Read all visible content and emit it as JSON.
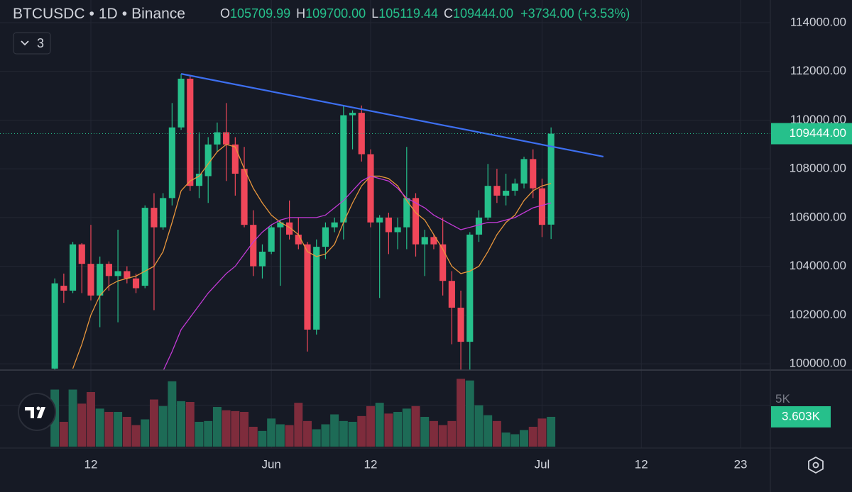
{
  "chart_data": {
    "type": "candlestick",
    "header": {
      "symbol": "BTCUSDC",
      "separator": "•",
      "interval": "1D",
      "exchange": "Binance",
      "ohlc": [
        {
          "label": "O",
          "value": "105709.99"
        },
        {
          "label": "H",
          "value": "109700.00"
        },
        {
          "label": "L",
          "value": "105119.44"
        },
        {
          "label": "C",
          "value": "109444.00"
        }
      ],
      "change": "+3734.00 (+3.53%)"
    },
    "indicators_count": "3",
    "x": [
      0,
      1,
      2,
      3,
      4,
      5,
      6,
      7,
      8,
      9,
      10,
      11,
      12,
      13,
      14,
      15,
      16,
      17,
      18,
      19,
      20,
      21,
      22,
      23,
      24,
      25,
      26,
      27,
      28,
      29,
      30,
      31,
      32,
      33,
      34,
      35,
      36,
      37,
      38,
      39,
      40,
      41,
      42,
      43,
      44,
      45,
      46,
      47,
      48,
      49,
      50,
      51,
      52,
      53,
      54,
      55
    ],
    "open": [
      99800,
      103200,
      103000,
      104900,
      104100,
      102800,
      104100,
      103600,
      103800,
      103500,
      103200,
      106400,
      105600,
      106800,
      109700,
      111700,
      107300,
      107700,
      109000,
      109500,
      109000,
      108000,
      105700,
      104000,
      104600,
      105600,
      105800,
      105300,
      104900,
      101400,
      104800,
      105600,
      105800,
      110200,
      110300,
      108600,
      105800,
      106000,
      105400,
      105600,
      106800,
      104900,
      105200,
      104900,
      103400,
      102300,
      100900,
      105300,
      106000,
      107300,
      106900,
      107100,
      107400,
      108400,
      107200,
      105709.99
    ],
    "high": [
      103500,
      103700,
      105000,
      104950,
      105700,
      104400,
      104200,
      105500,
      104000,
      103700,
      106500,
      107000,
      107000,
      110700,
      111900,
      111800,
      109500,
      109300,
      109900,
      110700,
      109300,
      108900,
      106300,
      104900,
      105700,
      105900,
      106700,
      106000,
      105000,
      105100,
      105800,
      106000,
      110600,
      110400,
      110600,
      108800,
      106100,
      106200,
      106000,
      108900,
      107000,
      105500,
      105300,
      106000,
      103800,
      103000,
      105400,
      106300,
      108200,
      108000,
      107800,
      107600,
      108500,
      108800,
      107600,
      109700
    ],
    "low": [
      99750,
      102500,
      102900,
      102900,
      102600,
      101500,
      103000,
      101700,
      103300,
      102900,
      103100,
      102200,
      105500,
      106500,
      109600,
      107100,
      106800,
      106600,
      108700,
      107500,
      106900,
      105600,
      103600,
      103500,
      104500,
      103200,
      105100,
      104700,
      100500,
      101200,
      104300,
      105400,
      105100,
      108800,
      108300,
      105600,
      102700,
      104500,
      104700,
      104700,
      104400,
      103600,
      104700,
      102800,
      100800,
      99750,
      99750,
      105000,
      105900,
      106600,
      106500,
      106900,
      107200,
      106800,
      105200,
      105119.44
    ],
    "close": [
      103300,
      103000,
      104900,
      104100,
      102800,
      104100,
      103600,
      103800,
      103500,
      103100,
      106400,
      105600,
      106800,
      109700,
      111700,
      107300,
      107800,
      109000,
      109500,
      109000,
      107800,
      105700,
      104000,
      104600,
      105600,
      105800,
      105300,
      104900,
      101400,
      104800,
      105600,
      105800,
      110200,
      110300,
      108600,
      105800,
      106000,
      105400,
      105600,
      106800,
      104900,
      105200,
      104900,
      103400,
      102300,
      100900,
      105300,
      106000,
      107300,
      106900,
      107100,
      107400,
      108400,
      107200,
      105700,
      109444
    ],
    "up_color": "#26c08b",
    "down_color": "#f0475a",
    "moving_averages": [
      {
        "color": "#e8963c",
        "values": [
          null,
          null,
          99800,
          100800,
          102000,
          102800,
          103200,
          103400,
          103500,
          103600,
          103800,
          104000,
          104600,
          105800,
          107100,
          107500,
          107700,
          108200,
          108700,
          109000,
          108900,
          108000,
          107200,
          106600,
          106100,
          105800,
          105600,
          105300,
          104600,
          104400,
          104500,
          104900,
          105800,
          106600,
          107300,
          107700,
          107700,
          107600,
          107300,
          106700,
          106200,
          105900,
          105300,
          104700,
          104000,
          103700,
          103800,
          104000,
          104600,
          105300,
          105800,
          106100,
          106700,
          107100,
          107300,
          107400
        ]
      },
      {
        "color": "#c23ad6",
        "values": [
          null,
          null,
          null,
          null,
          null,
          null,
          null,
          null,
          null,
          null,
          null,
          null,
          99700,
          100500,
          101400,
          101900,
          102400,
          102900,
          103300,
          103700,
          104000,
          104500,
          105000,
          105400,
          105700,
          105900,
          106000,
          106000,
          106000,
          106000,
          106100,
          106400,
          106700,
          107100,
          107500,
          107700,
          107600,
          107500,
          107200,
          106800,
          106600,
          106400,
          106100,
          105900,
          105700,
          105500,
          105600,
          105700,
          105800,
          105800,
          105900,
          106000,
          106200,
          106400,
          106500,
          106600
        ]
      }
    ],
    "trendline": {
      "color": "#3d6ff0",
      "x": [
        14,
        60.8
      ],
      "y": [
        111900,
        108500
      ]
    },
    "last_price": {
      "value": 109444,
      "label": "109444.00"
    },
    "xlim": [
      -6.07,
      79.3
    ],
    "xticks": [
      {
        "value": 4,
        "label": "12"
      },
      {
        "value": 24,
        "label": "Jun"
      },
      {
        "value": 35,
        "label": "12"
      },
      {
        "value": 54,
        "label": "Jul"
      },
      {
        "value": 65,
        "label": "12"
      },
      {
        "value": 76,
        "label": "23"
      }
    ],
    "ylim": [
      99740,
      114930
    ],
    "yticks": [
      {
        "value": 100000,
        "label": "100000.00"
      },
      {
        "value": 102000,
        "label": "102000.00"
      },
      {
        "value": 104000,
        "label": "104000.00"
      },
      {
        "value": 106000,
        "label": "106000.00"
      },
      {
        "value": 108000,
        "label": "108000.00"
      },
      {
        "value": 110000,
        "label": "110000.00"
      },
      {
        "value": 112000,
        "label": "112000.00"
      },
      {
        "value": 114000,
        "label": "114000.00"
      }
    ],
    "grid": true,
    "volume": {
      "values": [
        6900,
        3000,
        6900,
        5200,
        6600,
        4600,
        4200,
        4200,
        3600,
        2600,
        3300,
        5700,
        4900,
        7900,
        5500,
        5400,
        3000,
        3100,
        4800,
        4400,
        4300,
        4200,
        2400,
        1900,
        3400,
        2700,
        2600,
        5300,
        3100,
        2100,
        2700,
        3900,
        3100,
        3000,
        3700,
        4900,
        5300,
        4000,
        4200,
        4600,
        4900,
        3600,
        3100,
        2600,
        3100,
        8200,
        8000,
        5000,
        3800,
        3100,
        1700,
        1500,
        2000,
        2400,
        3400,
        3603
      ],
      "value_labels": [
        null,
        null,
        null,
        null,
        null,
        null,
        null,
        null,
        null,
        null,
        null,
        null,
        null,
        null,
        null,
        null,
        null,
        null,
        null,
        null,
        null,
        null,
        null,
        null,
        null,
        null,
        null,
        null,
        null,
        null,
        null,
        null,
        null,
        null,
        null,
        null,
        null,
        null,
        null,
        null,
        null,
        null,
        null,
        null,
        null,
        null,
        null,
        null,
        null,
        null,
        null,
        null,
        null,
        null,
        null,
        "3.603K"
      ],
      "up_color": "#1d6b56",
      "down_color": "#7e2c3c",
      "ylim": [
        0,
        9260
      ],
      "yticks": [
        {
          "value": 5000,
          "label": "5K"
        }
      ]
    }
  }
}
